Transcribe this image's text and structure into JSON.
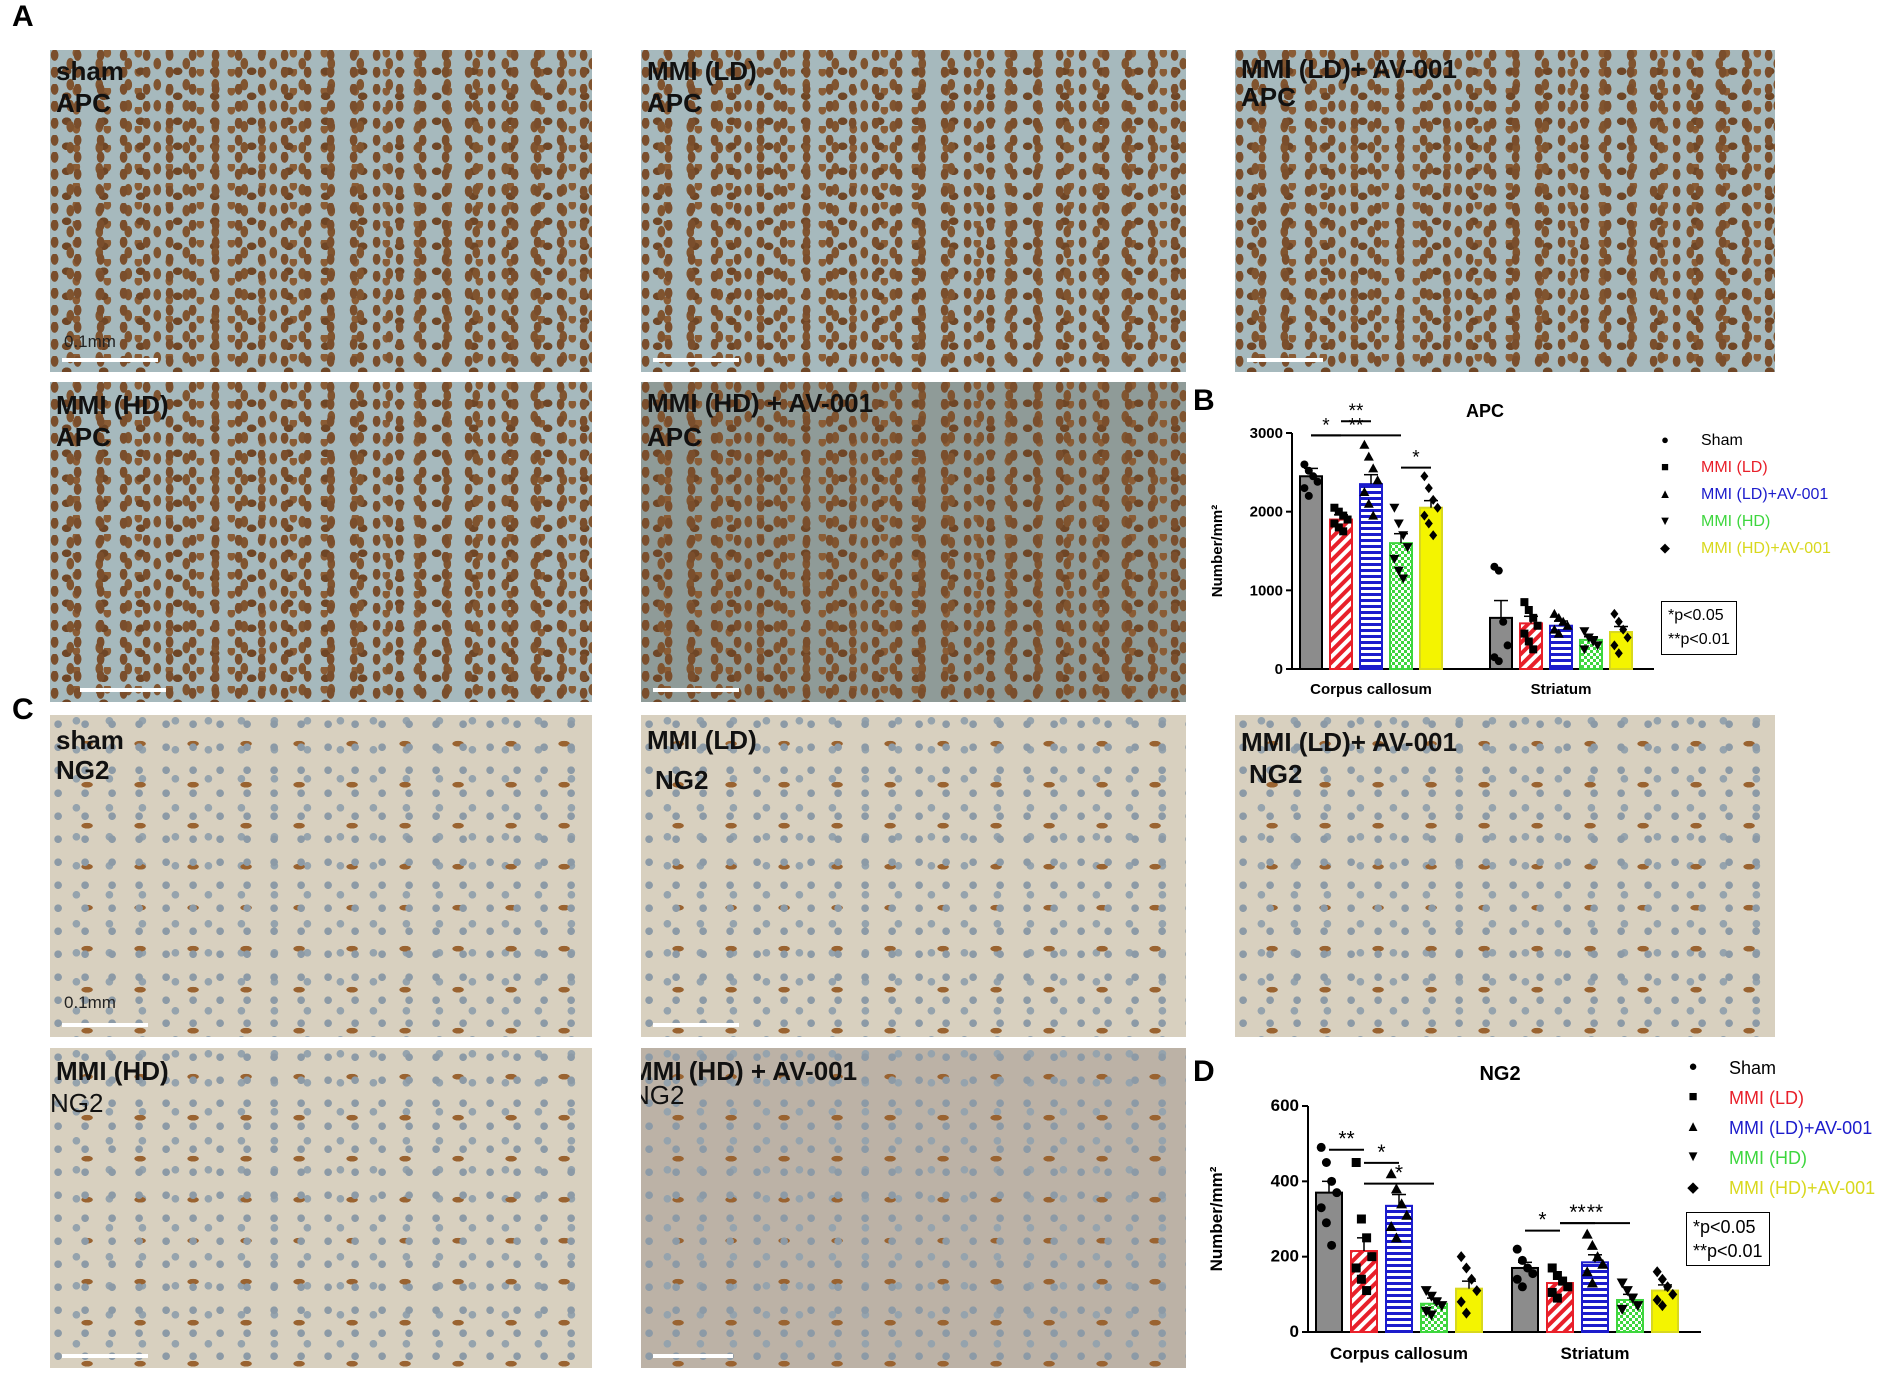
{
  "panels": {
    "a_letter": "A",
    "b_letter": "B",
    "c_letter": "C",
    "d_letter": "D"
  },
  "micrographs": {
    "apc": [
      {
        "group": "sham",
        "stain": "APC",
        "scale": "0.1mm"
      },
      {
        "group": "MMI (LD)",
        "stain": "APC"
      },
      {
        "group": "MMI (LD)+ AV-001",
        "stain": "APC"
      },
      {
        "group": "MMI (HD)",
        "stain": "APC"
      },
      {
        "group": "MMI (HD) + AV-001",
        "stain": "APC"
      }
    ],
    "ng2": [
      {
        "group": "sham",
        "stain": "NG2",
        "scale": "0.1mm"
      },
      {
        "group": "MMI (LD)",
        "stain": "NG2"
      },
      {
        "group": "MMI (LD)+ AV-001",
        "stain": "NG2"
      },
      {
        "group": "MMI (HD)",
        "stain": "NG2"
      },
      {
        "group": "MMI (HD) + AV-001",
        "stain": "NG2"
      }
    ]
  },
  "legend": {
    "items": [
      {
        "label": "Sham",
        "symbol": "●",
        "color": "#000000"
      },
      {
        "label": "MMI (LD)",
        "symbol": "■",
        "color": "#e8202a"
      },
      {
        "label": "MMI (LD)+AV-001",
        "symbol": "▲",
        "color": "#1c1ccc"
      },
      {
        "label": "MMI (HD)",
        "symbol": "▼",
        "color": "#3ed63e"
      },
      {
        "label": "MMI (HD)+AV-001",
        "symbol": "◆",
        "color": "#d8d81e"
      }
    ]
  },
  "pvalues": {
    "line1": "*p<0.05",
    "line2": "**p<0.01"
  },
  "chart_data": [
    {
      "type": "bar",
      "title": "APC",
      "ylabel": "Number/mm²",
      "ylim": [
        0,
        3000
      ],
      "yticks": [
        "0",
        "1000",
        "2000",
        "3000"
      ],
      "categories": [
        "Corpus callosum",
        "Striatum"
      ],
      "series": [
        {
          "name": "Sham",
          "values": [
            2450,
            650
          ],
          "errors": [
            100,
            220
          ],
          "points": [
            [
              2600,
              2520,
              2450,
              2380,
              2300,
              2200
            ],
            [
              1300,
              1250,
              600,
              300,
              150,
              100
            ]
          ]
        },
        {
          "name": "MMI (LD)",
          "values": [
            1900,
            580
          ],
          "errors": [
            60,
            90
          ],
          "points": [
            [
              2050,
              2000,
              1950,
              1900,
              1850,
              1800,
              1750
            ],
            [
              850,
              750,
              650,
              550,
              450,
              350,
              250
            ]
          ]
        },
        {
          "name": "MMI (LD)+AV-001",
          "values": [
            2350,
            550
          ],
          "errors": [
            120,
            60
          ],
          "points": [
            [
              2850,
              2700,
              2550,
              2400,
              2250,
              2100,
              1950
            ],
            [
              700,
              650,
              600,
              550,
              500,
              450
            ]
          ]
        },
        {
          "name": "MMI (HD)",
          "values": [
            1600,
            370
          ],
          "errors": [
            120,
            40
          ],
          "points": [
            [
              2050,
              1850,
              1700,
              1550,
              1400,
              1250,
              1150
            ],
            [
              480,
              400,
              350,
              300,
              250
            ]
          ]
        },
        {
          "name": "MMI (HD)+AV-001",
          "values": [
            2050,
            470
          ],
          "errors": [
            90,
            70
          ],
          "points": [
            [
              2450,
              2300,
              2150,
              2050,
              1950,
              1850,
              1700
            ],
            [
              700,
              600,
              500,
              400,
              300,
              200
            ]
          ]
        }
      ],
      "significance": [
        {
          "label": "*",
          "from_series": 0,
          "to_series": 1,
          "category": 0,
          "level": 0
        },
        {
          "label": "**",
          "from_series": 1,
          "to_series": 2,
          "category": 0,
          "level": 1
        },
        {
          "label": "**",
          "from_series": 0,
          "to_series": 3,
          "category": 0,
          "level": 0
        },
        {
          "label": "*",
          "from_series": 3,
          "to_series": 4,
          "category": 0,
          "level": 0
        }
      ]
    },
    {
      "type": "bar",
      "title": "NG2",
      "ylabel": "Number/mm²",
      "ylim": [
        0,
        600
      ],
      "yticks": [
        "0",
        "200",
        "400",
        "600"
      ],
      "categories": [
        "Corpus callosum",
        "Striatum"
      ],
      "series": [
        {
          "name": "Sham",
          "values": [
            370,
            170
          ],
          "errors": [
            30,
            15
          ],
          "points": [
            [
              490,
              450,
              400,
              370,
              330,
              290,
              230
            ],
            [
              220,
              190,
              170,
              155,
              140,
              120
            ]
          ]
        },
        {
          "name": "MMI (LD)",
          "values": [
            215,
            130
          ],
          "errors": [
            35,
            15
          ],
          "points": [
            [
              450,
              300,
              250,
              200,
              170,
              140,
              110
            ],
            [
              170,
              150,
              135,
              120,
              105,
              90
            ]
          ]
        },
        {
          "name": "MMI (LD)+AV-001",
          "values": [
            335,
            185
          ],
          "errors": [
            30,
            20
          ],
          "points": [
            [
              420,
              380,
              340,
              310,
              280,
              250
            ],
            [
              260,
              230,
              200,
              180,
              160,
              130
            ]
          ]
        },
        {
          "name": "MMI (HD)",
          "values": [
            75,
            85
          ],
          "errors": [
            15,
            15
          ],
          "points": [
            [
              110,
              95,
              80,
              70,
              55,
              45
            ],
            [
              130,
              110,
              90,
              70,
              60
            ]
          ]
        },
        {
          "name": "MMI (HD)+AV-001",
          "values": [
            115,
            110
          ],
          "errors": [
            20,
            15
          ],
          "points": [
            [
              200,
              170,
              140,
              110,
              80,
              50
            ],
            [
              160,
              140,
              120,
              100,
              85,
              70
            ]
          ]
        }
      ],
      "significance": [
        {
          "label": "**",
          "from_series": 0,
          "to_series": 1,
          "category": 0,
          "level": 0
        },
        {
          "label": "*",
          "from_series": 1,
          "to_series": 2,
          "category": 0,
          "level": 0
        },
        {
          "label": "*",
          "from_series": 1,
          "to_series": 3,
          "category": 0,
          "level": 1
        },
        {
          "label": "*",
          "from_series": 0,
          "to_series": 1,
          "category": 1,
          "level": 0
        },
        {
          "label": "**",
          "from_series": 1,
          "to_series": 2,
          "category": 1,
          "level": 0
        },
        {
          "label": "**",
          "from_series": 1,
          "to_series": 3,
          "category": 1,
          "level": 1
        }
      ]
    }
  ]
}
